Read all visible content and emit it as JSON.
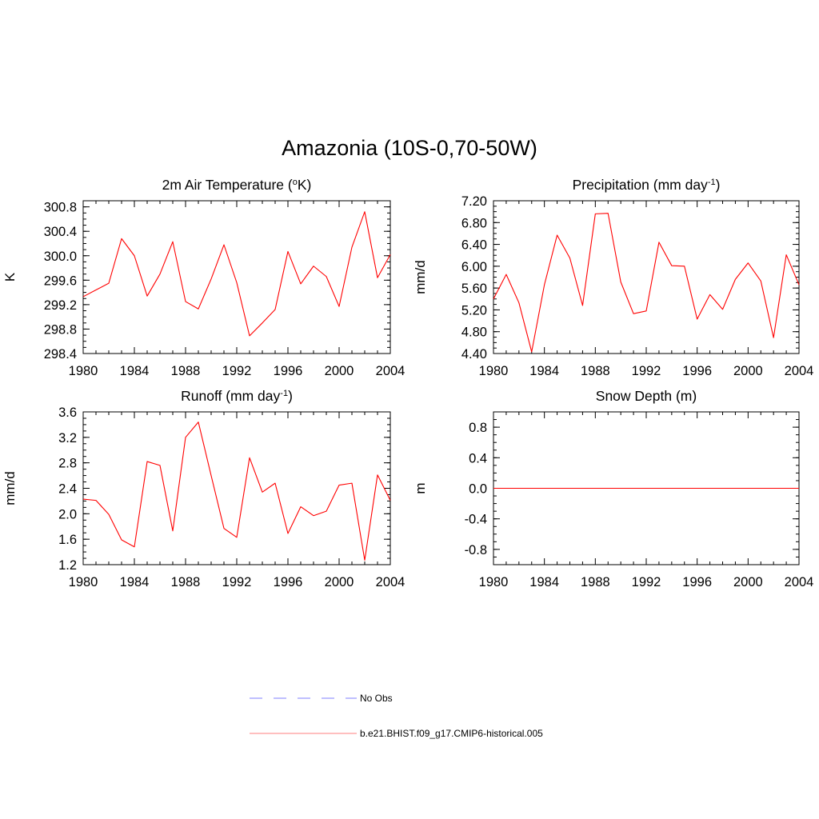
{
  "figure": {
    "title": "Amazonia (10S-0,70-50W)"
  },
  "legend": [
    {
      "label": "No Obs",
      "color": "#9999ff",
      "style": "dashed"
    },
    {
      "label": "b.e21.BHIST.f09_g17.CMIP6-historical.005",
      "color": "#ff9999",
      "style": "solid"
    }
  ],
  "chart_data": [
    {
      "type": "line",
      "title_main": "2m Air Temperature (",
      "title_sup": "o",
      "title_end": "K)",
      "title_sup_before": true,
      "ylabel": "K",
      "xlim": [
        1980,
        2004
      ],
      "ylim": [
        298.4,
        300.9
      ],
      "xticks": [
        1980,
        1984,
        1988,
        1992,
        1996,
        2000,
        2004
      ],
      "yticks": [
        "298.4",
        "298.8",
        "299.2",
        "299.6",
        "300.0",
        "300.4",
        "300.8"
      ],
      "yminor": 0.1,
      "series": [
        {
          "name": "b.e21.BHIST.f09_g17.CMIP6-historical.005",
          "color": "#ff0000",
          "x": [
            1980,
            1981,
            1982,
            1983,
            1984,
            1985,
            1986,
            1987,
            1988,
            1989,
            1990,
            1991,
            1992,
            1993,
            1994,
            1995,
            1996,
            1997,
            1998,
            1999,
            2000,
            2001,
            2002,
            2003,
            2004
          ],
          "y": [
            299.33,
            299.44,
            299.55,
            300.28,
            300.0,
            299.34,
            299.7,
            300.23,
            299.25,
            299.13,
            299.62,
            300.18,
            299.56,
            298.69,
            298.9,
            299.12,
            300.07,
            299.54,
            299.83,
            299.66,
            299.17,
            300.14,
            300.72,
            299.64,
            300.02
          ]
        }
      ]
    },
    {
      "type": "line",
      "title_main": "Precipitation (mm day",
      "title_sup": "-1",
      "title_end": ")",
      "ylabel": "mm/d",
      "xlim": [
        1980,
        2004
      ],
      "ylim": [
        4.4,
        7.2
      ],
      "xticks": [
        1980,
        1984,
        1988,
        1992,
        1996,
        2000,
        2004
      ],
      "yticks": [
        "4.40",
        "4.80",
        "5.20",
        "5.60",
        "6.00",
        "6.40",
        "6.80",
        "7.20"
      ],
      "yminor": 0.1,
      "series": [
        {
          "name": "b.e21.BHIST.f09_g17.CMIP6-historical.005",
          "color": "#ff0000",
          "x": [
            1980,
            1981,
            1982,
            1983,
            1984,
            1985,
            1986,
            1987,
            1988,
            1989,
            1990,
            1991,
            1992,
            1993,
            1994,
            1995,
            1996,
            1997,
            1998,
            1999,
            2000,
            2001,
            2002,
            2003,
            2004
          ],
          "y": [
            5.4,
            5.85,
            5.33,
            4.43,
            5.66,
            6.57,
            6.15,
            5.28,
            6.96,
            6.97,
            5.71,
            5.13,
            5.18,
            6.44,
            6.01,
            6.0,
            5.03,
            5.48,
            5.21,
            5.76,
            6.06,
            5.73,
            4.69,
            6.21,
            5.66
          ]
        }
      ]
    },
    {
      "type": "line",
      "title_main": "Runoff (mm day",
      "title_sup": "-1",
      "title_end": ")",
      "ylabel": "mm/d",
      "xlim": [
        1980,
        2004
      ],
      "ylim": [
        1.2,
        3.6
      ],
      "xticks": [
        1980,
        1984,
        1988,
        1992,
        1996,
        2000,
        2004
      ],
      "yticks": [
        "1.2",
        "1.6",
        "2.0",
        "2.4",
        "2.8",
        "3.2",
        "3.6"
      ],
      "yminor": 0.1,
      "series": [
        {
          "name": "b.e21.BHIST.f09_g17.CMIP6-historical.005",
          "color": "#ff0000",
          "x": [
            1980,
            1981,
            1982,
            1983,
            1984,
            1985,
            1986,
            1987,
            1988,
            1989,
            1990,
            1991,
            1992,
            1993,
            1994,
            1995,
            1996,
            1997,
            1998,
            1999,
            2000,
            2001,
            2002,
            2003,
            2004
          ],
          "y": [
            2.23,
            2.21,
            1.99,
            1.59,
            1.48,
            2.82,
            2.76,
            1.73,
            3.2,
            3.44,
            2.6,
            1.77,
            1.63,
            2.88,
            2.34,
            2.48,
            1.69,
            2.11,
            1.97,
            2.04,
            2.45,
            2.48,
            1.27,
            2.61,
            2.21
          ]
        }
      ]
    },
    {
      "type": "line",
      "title_main": "Snow Depth (m)",
      "title_sup": "",
      "title_end": "",
      "ylabel": "m",
      "xlim": [
        1980,
        2004
      ],
      "ylim": [
        -1.0,
        1.0
      ],
      "xticks": [
        1980,
        1984,
        1988,
        1992,
        1996,
        2000,
        2004
      ],
      "yticks": [
        "-0.8",
        "-0.4",
        "0.0",
        "0.4",
        "0.8"
      ],
      "yminor": 0.1,
      "series": [
        {
          "name": "b.e21.BHIST.f09_g17.CMIP6-historical.005",
          "color": "#ff0000",
          "x": [
            1980,
            1981,
            1982,
            1983,
            1984,
            1985,
            1986,
            1987,
            1988,
            1989,
            1990,
            1991,
            1992,
            1993,
            1994,
            1995,
            1996,
            1997,
            1998,
            1999,
            2000,
            2001,
            2002,
            2003,
            2004
          ],
          "y": [
            0,
            0,
            0,
            0,
            0,
            0,
            0,
            0,
            0,
            0,
            0,
            0,
            0,
            0,
            0,
            0,
            0,
            0,
            0,
            0,
            0,
            0,
            0,
            0,
            0
          ]
        }
      ]
    }
  ]
}
